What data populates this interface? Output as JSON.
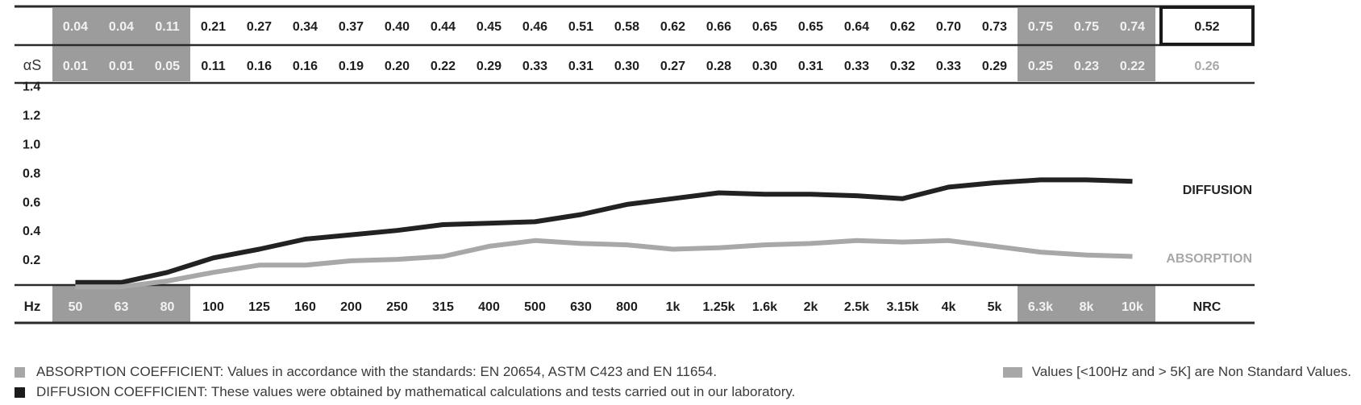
{
  "chart_data": {
    "type": "line",
    "row_labels": {
      "diffusion": "",
      "absorption": "αS",
      "frequency": "Hz"
    },
    "x": [
      "50",
      "63",
      "80",
      "100",
      "125",
      "160",
      "200",
      "250",
      "315",
      "400",
      "500",
      "630",
      "800",
      "1k",
      "1.25k",
      "1.6k",
      "2k",
      "2.5k",
      "3.15k",
      "4k",
      "5k",
      "6.3k",
      "8k",
      "10k"
    ],
    "x_display": [
      "50",
      "63",
      "80",
      "100",
      "125",
      "160",
      "200",
      "250",
      "315",
      "400",
      "500",
      "630",
      "800",
      "1k",
      "1.25k",
      "1.6k",
      "2k",
      "2.5k",
      "3.15k",
      "4k",
      "5k",
      "6.3k",
      "8k",
      "10k"
    ],
    "series": [
      {
        "name": "DIFFUSION",
        "values": [
          0.04,
          0.04,
          0.11,
          0.21,
          0.27,
          0.34,
          0.37,
          0.4,
          0.44,
          0.45,
          0.46,
          0.51,
          0.58,
          0.62,
          0.66,
          0.65,
          0.65,
          0.64,
          0.62,
          0.7,
          0.73,
          0.75,
          0.75,
          0.74
        ],
        "values_display": [
          "0.04",
          "0.04",
          "0.11",
          "0.21",
          "0.27",
          "0.34",
          "0.37",
          "0.40",
          "0.44",
          "0.45",
          "0.46",
          "0.51",
          "0.58",
          "0.62",
          "0.66",
          "0.65",
          "0.65",
          "0.64",
          "0.62",
          "0.70",
          "0.73",
          "0.75",
          "0.75",
          "0.74"
        ],
        "color": "#222222"
      },
      {
        "name": "ABSORPTION",
        "values": [
          0.01,
          0.01,
          0.05,
          0.11,
          0.16,
          0.16,
          0.19,
          0.2,
          0.22,
          0.29,
          0.33,
          0.31,
          0.3,
          0.27,
          0.28,
          0.3,
          0.31,
          0.33,
          0.32,
          0.33,
          0.29,
          0.25,
          0.23,
          0.22
        ],
        "values_display": [
          "0.01",
          "0.01",
          "0.05",
          "0.11",
          "0.16",
          "0.16",
          "0.19",
          "0.20",
          "0.22",
          "0.29",
          "0.33",
          "0.31",
          "0.30",
          "0.27",
          "0.28",
          "0.30",
          "0.31",
          "0.33",
          "0.32",
          "0.33",
          "0.29",
          "0.25",
          "0.23",
          "0.22"
        ],
        "color": "#a8a8a8"
      }
    ],
    "nrc": {
      "label": "NRC",
      "diffusion": "0.52",
      "absorption": "0.26"
    },
    "y_ticks": [
      "0.2",
      "0.4",
      "0.6",
      "0.8",
      "1.0",
      "1.2",
      "1.4"
    ],
    "ylim": [
      0,
      1.4
    ],
    "non_standard_indices": [
      0,
      1,
      2,
      21,
      22,
      23
    ],
    "colors": {
      "shaded_cell": "#9c9c9c",
      "diffusion_line": "#222222",
      "absorption_line": "#a8a8a8",
      "rule": "#333333"
    }
  },
  "legend": {
    "absorption_note": "ABSORPTION COEFFICIENT: Values in accordance with the standards: EN 20654, ASTM C423 and EN 11654.",
    "diffusion_note": "DIFFUSION COEFFICIENT: These values were obtained by mathematical calculations and tests carried out in our laboratory.",
    "nonstandard_note": "Values [<100Hz and > 5K] are Non Standard Values."
  }
}
